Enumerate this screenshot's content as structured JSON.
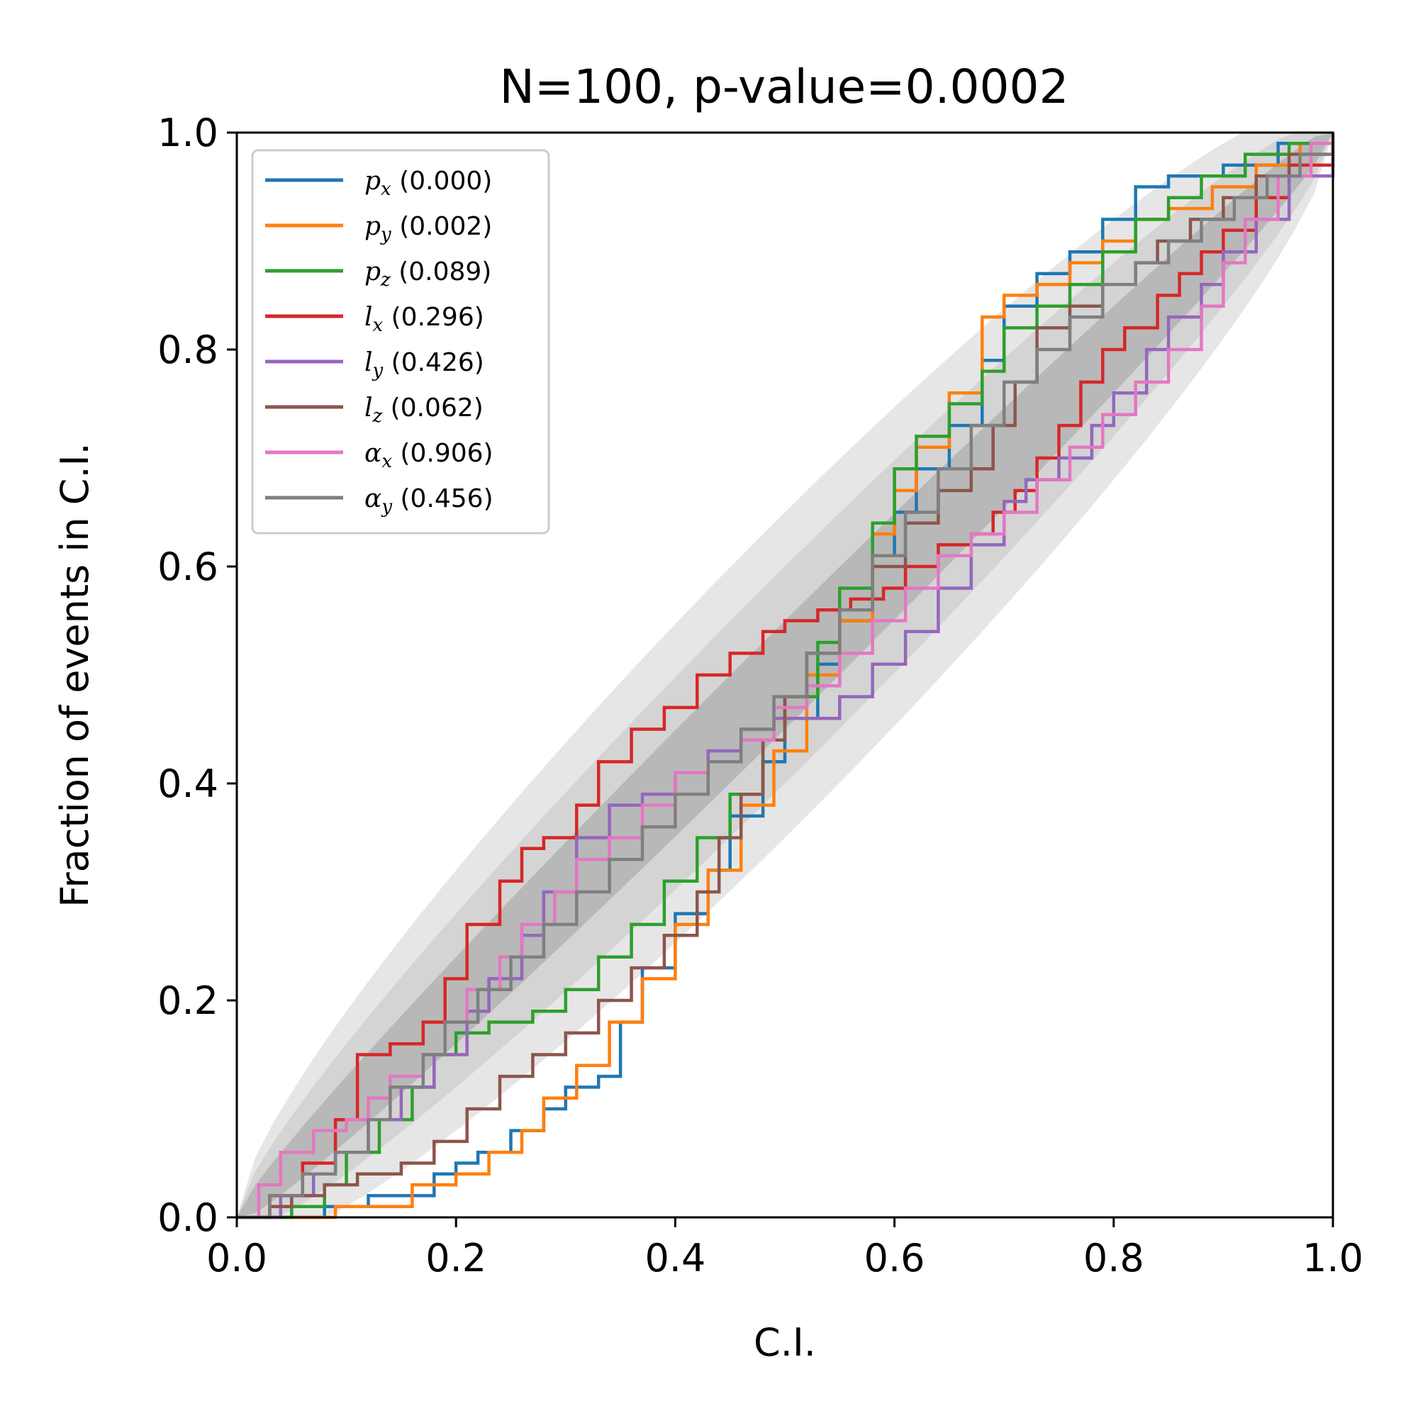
{
  "chart_data": {
    "type": "line",
    "title": "N=100, p-value=0.0002",
    "xlabel": "C.I.",
    "ylabel": "Fraction of events in C.I.",
    "xlim": [
      0,
      1
    ],
    "ylim": [
      0,
      1
    ],
    "xticks": [
      "0.0",
      "0.2",
      "0.4",
      "0.6",
      "0.8",
      "1.0"
    ],
    "yticks": [
      "0.0",
      "0.2",
      "0.4",
      "0.6",
      "0.8",
      "1.0"
    ],
    "grid": false,
    "legend_position": "top-left",
    "confidence_bands": [
      {
        "level": "1-sigma",
        "color": "#b8b8b8",
        "half_width_at_mid": 0.05
      },
      {
        "level": "2-sigma",
        "color": "#d4d4d4",
        "half_width_at_mid": 0.1
      },
      {
        "level": "3-sigma",
        "color": "#e6e6e6",
        "half_width_at_mid": 0.15
      }
    ],
    "series": [
      {
        "name": "p_x",
        "sym": "p",
        "sub": "x",
        "pvalue": "(0.000)",
        "color": "#1f77b4",
        "points": [
          [
            0,
            0
          ],
          [
            0.04,
            0
          ],
          [
            0.08,
            0.01
          ],
          [
            0.1,
            0.01
          ],
          [
            0.12,
            0.02
          ],
          [
            0.15,
            0.02
          ],
          [
            0.18,
            0.04
          ],
          [
            0.2,
            0.05
          ],
          [
            0.22,
            0.06
          ],
          [
            0.25,
            0.08
          ],
          [
            0.28,
            0.1
          ],
          [
            0.3,
            0.12
          ],
          [
            0.33,
            0.13
          ],
          [
            0.35,
            0.18
          ],
          [
            0.37,
            0.23
          ],
          [
            0.4,
            0.28
          ],
          [
            0.43,
            0.32
          ],
          [
            0.45,
            0.37
          ],
          [
            0.48,
            0.42
          ],
          [
            0.5,
            0.46
          ],
          [
            0.53,
            0.51
          ],
          [
            0.55,
            0.55
          ],
          [
            0.58,
            0.61
          ],
          [
            0.6,
            0.65
          ],
          [
            0.62,
            0.69
          ],
          [
            0.65,
            0.73
          ],
          [
            0.68,
            0.79
          ],
          [
            0.7,
            0.84
          ],
          [
            0.73,
            0.87
          ],
          [
            0.76,
            0.89
          ],
          [
            0.79,
            0.92
          ],
          [
            0.82,
            0.95
          ],
          [
            0.85,
            0.96
          ],
          [
            0.9,
            0.97
          ],
          [
            0.95,
            0.99
          ],
          [
            1,
            1
          ]
        ]
      },
      {
        "name": "p_y",
        "sym": "p",
        "sub": "y",
        "pvalue": "(0.002)",
        "color": "#ff7f0e",
        "points": [
          [
            0,
            0
          ],
          [
            0.06,
            0
          ],
          [
            0.09,
            0.01
          ],
          [
            0.12,
            0.01
          ],
          [
            0.16,
            0.03
          ],
          [
            0.2,
            0.04
          ],
          [
            0.23,
            0.06
          ],
          [
            0.26,
            0.08
          ],
          [
            0.28,
            0.11
          ],
          [
            0.31,
            0.14
          ],
          [
            0.34,
            0.18
          ],
          [
            0.37,
            0.22
          ],
          [
            0.4,
            0.27
          ],
          [
            0.43,
            0.32
          ],
          [
            0.46,
            0.38
          ],
          [
            0.49,
            0.43
          ],
          [
            0.52,
            0.5
          ],
          [
            0.55,
            0.55
          ],
          [
            0.58,
            0.63
          ],
          [
            0.6,
            0.67
          ],
          [
            0.62,
            0.71
          ],
          [
            0.65,
            0.76
          ],
          [
            0.68,
            0.83
          ],
          [
            0.7,
            0.85
          ],
          [
            0.73,
            0.86
          ],
          [
            0.76,
            0.88
          ],
          [
            0.79,
            0.9
          ],
          [
            0.82,
            0.92
          ],
          [
            0.85,
            0.93
          ],
          [
            0.89,
            0.95
          ],
          [
            0.93,
            0.97
          ],
          [
            0.97,
            0.99
          ],
          [
            1,
            1
          ]
        ]
      },
      {
        "name": "p_z",
        "sym": "p",
        "sub": "z",
        "pvalue": "(0.089)",
        "color": "#2ca02c",
        "points": [
          [
            0,
            0
          ],
          [
            0.05,
            0.01
          ],
          [
            0.08,
            0.03
          ],
          [
            0.1,
            0.06
          ],
          [
            0.13,
            0.09
          ],
          [
            0.16,
            0.12
          ],
          [
            0.18,
            0.15
          ],
          [
            0.2,
            0.17
          ],
          [
            0.23,
            0.18
          ],
          [
            0.27,
            0.19
          ],
          [
            0.3,
            0.21
          ],
          [
            0.33,
            0.24
          ],
          [
            0.36,
            0.27
          ],
          [
            0.39,
            0.31
          ],
          [
            0.42,
            0.35
          ],
          [
            0.45,
            0.39
          ],
          [
            0.48,
            0.44
          ],
          [
            0.5,
            0.48
          ],
          [
            0.53,
            0.53
          ],
          [
            0.55,
            0.58
          ],
          [
            0.58,
            0.64
          ],
          [
            0.6,
            0.69
          ],
          [
            0.62,
            0.72
          ],
          [
            0.65,
            0.75
          ],
          [
            0.68,
            0.78
          ],
          [
            0.7,
            0.82
          ],
          [
            0.73,
            0.84
          ],
          [
            0.76,
            0.86
          ],
          [
            0.79,
            0.89
          ],
          [
            0.82,
            0.92
          ],
          [
            0.85,
            0.94
          ],
          [
            0.88,
            0.96
          ],
          [
            0.92,
            0.98
          ],
          [
            0.96,
            0.99
          ],
          [
            1,
            1
          ]
        ]
      },
      {
        "name": "l_x",
        "sym": "l",
        "sub": "x",
        "pvalue": "(0.296)",
        "color": "#d62728",
        "points": [
          [
            0,
            0
          ],
          [
            0.03,
            0.02
          ],
          [
            0.06,
            0.05
          ],
          [
            0.09,
            0.09
          ],
          [
            0.11,
            0.15
          ],
          [
            0.14,
            0.16
          ],
          [
            0.17,
            0.18
          ],
          [
            0.19,
            0.22
          ],
          [
            0.21,
            0.27
          ],
          [
            0.24,
            0.31
          ],
          [
            0.26,
            0.34
          ],
          [
            0.28,
            0.35
          ],
          [
            0.31,
            0.38
          ],
          [
            0.33,
            0.42
          ],
          [
            0.36,
            0.45
          ],
          [
            0.39,
            0.47
          ],
          [
            0.42,
            0.5
          ],
          [
            0.45,
            0.52
          ],
          [
            0.48,
            0.54
          ],
          [
            0.5,
            0.55
          ],
          [
            0.53,
            0.56
          ],
          [
            0.56,
            0.57
          ],
          [
            0.59,
            0.58
          ],
          [
            0.61,
            0.6
          ],
          [
            0.64,
            0.62
          ],
          [
            0.67,
            0.63
          ],
          [
            0.69,
            0.65
          ],
          [
            0.71,
            0.67
          ],
          [
            0.73,
            0.7
          ],
          [
            0.75,
            0.73
          ],
          [
            0.77,
            0.77
          ],
          [
            0.79,
            0.8
          ],
          [
            0.81,
            0.82
          ],
          [
            0.84,
            0.85
          ],
          [
            0.86,
            0.87
          ],
          [
            0.88,
            0.89
          ],
          [
            0.9,
            0.91
          ],
          [
            0.93,
            0.94
          ],
          [
            0.96,
            0.97
          ],
          [
            1,
            1
          ]
        ]
      },
      {
        "name": "l_y",
        "sym": "l",
        "sub": "y",
        "pvalue": "(0.426)",
        "color": "#9467bd",
        "points": [
          [
            0,
            0
          ],
          [
            0.04,
            0.02
          ],
          [
            0.07,
            0.04
          ],
          [
            0.09,
            0.06
          ],
          [
            0.12,
            0.09
          ],
          [
            0.15,
            0.12
          ],
          [
            0.18,
            0.15
          ],
          [
            0.21,
            0.19
          ],
          [
            0.23,
            0.22
          ],
          [
            0.26,
            0.26
          ],
          [
            0.28,
            0.3
          ],
          [
            0.31,
            0.35
          ],
          [
            0.34,
            0.38
          ],
          [
            0.37,
            0.39
          ],
          [
            0.4,
            0.41
          ],
          [
            0.43,
            0.43
          ],
          [
            0.46,
            0.45
          ],
          [
            0.49,
            0.46
          ],
          [
            0.52,
            0.46
          ],
          [
            0.55,
            0.48
          ],
          [
            0.58,
            0.51
          ],
          [
            0.61,
            0.54
          ],
          [
            0.64,
            0.58
          ],
          [
            0.67,
            0.62
          ],
          [
            0.7,
            0.66
          ],
          [
            0.72,
            0.68
          ],
          [
            0.75,
            0.7
          ],
          [
            0.78,
            0.73
          ],
          [
            0.8,
            0.76
          ],
          [
            0.83,
            0.8
          ],
          [
            0.85,
            0.83
          ],
          [
            0.88,
            0.86
          ],
          [
            0.9,
            0.89
          ],
          [
            0.93,
            0.92
          ],
          [
            0.96,
            0.96
          ],
          [
            1,
            1
          ]
        ]
      },
      {
        "name": "l_z",
        "sym": "l",
        "sub": "z",
        "pvalue": "(0.062)",
        "color": "#8c564b",
        "points": [
          [
            0,
            0
          ],
          [
            0.03,
            0.01
          ],
          [
            0.05,
            0.02
          ],
          [
            0.08,
            0.03
          ],
          [
            0.11,
            0.04
          ],
          [
            0.15,
            0.05
          ],
          [
            0.18,
            0.07
          ],
          [
            0.21,
            0.1
          ],
          [
            0.24,
            0.13
          ],
          [
            0.27,
            0.15
          ],
          [
            0.3,
            0.17
          ],
          [
            0.33,
            0.2
          ],
          [
            0.36,
            0.23
          ],
          [
            0.39,
            0.26
          ],
          [
            0.42,
            0.3
          ],
          [
            0.44,
            0.35
          ],
          [
            0.46,
            0.39
          ],
          [
            0.48,
            0.44
          ],
          [
            0.5,
            0.48
          ],
          [
            0.52,
            0.52
          ],
          [
            0.55,
            0.56
          ],
          [
            0.58,
            0.6
          ],
          [
            0.61,
            0.64
          ],
          [
            0.64,
            0.67
          ],
          [
            0.67,
            0.69
          ],
          [
            0.69,
            0.73
          ],
          [
            0.71,
            0.77
          ],
          [
            0.73,
            0.82
          ],
          [
            0.76,
            0.84
          ],
          [
            0.79,
            0.86
          ],
          [
            0.82,
            0.88
          ],
          [
            0.84,
            0.9
          ],
          [
            0.87,
            0.92
          ],
          [
            0.9,
            0.94
          ],
          [
            0.93,
            0.96
          ],
          [
            0.96,
            0.98
          ],
          [
            1,
            1
          ]
        ]
      },
      {
        "name": "alpha_x",
        "sym": "α",
        "sub": "x",
        "pvalue": "(0.906)",
        "color": "#e377c2",
        "points": [
          [
            0,
            0
          ],
          [
            0.02,
            0.03
          ],
          [
            0.04,
            0.06
          ],
          [
            0.07,
            0.08
          ],
          [
            0.1,
            0.09
          ],
          [
            0.12,
            0.11
          ],
          [
            0.14,
            0.13
          ],
          [
            0.17,
            0.15
          ],
          [
            0.19,
            0.18
          ],
          [
            0.21,
            0.21
          ],
          [
            0.24,
            0.24
          ],
          [
            0.26,
            0.27
          ],
          [
            0.29,
            0.3
          ],
          [
            0.31,
            0.33
          ],
          [
            0.34,
            0.35
          ],
          [
            0.37,
            0.38
          ],
          [
            0.4,
            0.41
          ],
          [
            0.43,
            0.42
          ],
          [
            0.46,
            0.44
          ],
          [
            0.49,
            0.47
          ],
          [
            0.52,
            0.49
          ],
          [
            0.55,
            0.52
          ],
          [
            0.58,
            0.55
          ],
          [
            0.61,
            0.58
          ],
          [
            0.64,
            0.61
          ],
          [
            0.67,
            0.63
          ],
          [
            0.7,
            0.65
          ],
          [
            0.73,
            0.68
          ],
          [
            0.76,
            0.71
          ],
          [
            0.79,
            0.74
          ],
          [
            0.82,
            0.77
          ],
          [
            0.85,
            0.8
          ],
          [
            0.88,
            0.84
          ],
          [
            0.9,
            0.88
          ],
          [
            0.92,
            0.92
          ],
          [
            0.95,
            0.96
          ],
          [
            0.98,
            0.99
          ],
          [
            1,
            1
          ]
        ]
      },
      {
        "name": "alpha_y",
        "sym": "α",
        "sub": "y",
        "pvalue": "(0.456)",
        "color": "#7f7f7f",
        "points": [
          [
            0,
            0
          ],
          [
            0.03,
            0.02
          ],
          [
            0.06,
            0.04
          ],
          [
            0.09,
            0.06
          ],
          [
            0.12,
            0.09
          ],
          [
            0.14,
            0.12
          ],
          [
            0.17,
            0.15
          ],
          [
            0.19,
            0.18
          ],
          [
            0.22,
            0.21
          ],
          [
            0.25,
            0.24
          ],
          [
            0.28,
            0.27
          ],
          [
            0.31,
            0.3
          ],
          [
            0.34,
            0.33
          ],
          [
            0.37,
            0.36
          ],
          [
            0.4,
            0.39
          ],
          [
            0.43,
            0.42
          ],
          [
            0.46,
            0.45
          ],
          [
            0.49,
            0.48
          ],
          [
            0.52,
            0.52
          ],
          [
            0.55,
            0.56
          ],
          [
            0.58,
            0.61
          ],
          [
            0.61,
            0.65
          ],
          [
            0.64,
            0.69
          ],
          [
            0.67,
            0.73
          ],
          [
            0.7,
            0.77
          ],
          [
            0.73,
            0.8
          ],
          [
            0.76,
            0.83
          ],
          [
            0.79,
            0.86
          ],
          [
            0.82,
            0.88
          ],
          [
            0.85,
            0.9
          ],
          [
            0.88,
            0.92
          ],
          [
            0.91,
            0.94
          ],
          [
            0.94,
            0.96
          ],
          [
            0.97,
            0.98
          ],
          [
            1,
            1
          ]
        ]
      }
    ]
  }
}
